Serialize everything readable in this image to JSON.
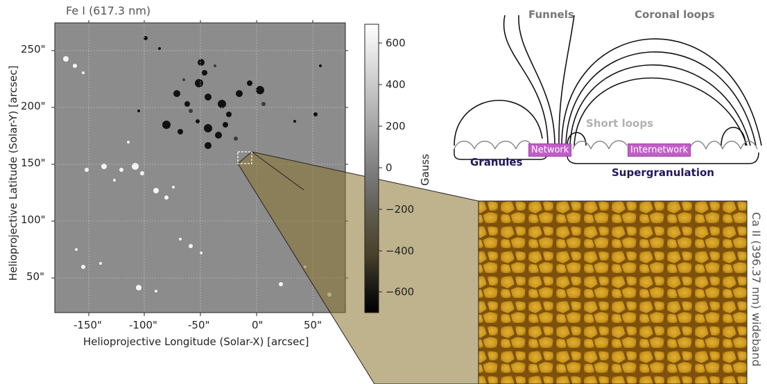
{
  "magnetogram": {
    "title": "Fe I (617.3 nm)",
    "xlabel": "Helioprojective Longitude (Solar-X) [arcsec]",
    "ylabel": "Helioprojective Latitude (Solar-Y) [arcsec]",
    "xticks": [
      "-150\"",
      "-100\"",
      "-50\"",
      "0\"",
      "50\""
    ],
    "yticks": [
      "250\"",
      "200\"",
      "150\"",
      "100\"",
      "50\""
    ]
  },
  "colorbar": {
    "label": "Gauss",
    "ticks": [
      "600",
      "400",
      "200",
      "0",
      "−200",
      "−400",
      "−600"
    ],
    "range": [
      -700,
      700
    ]
  },
  "diagram": {
    "funnels": "Funnels",
    "coronal_loops": "Coronal loops",
    "short_loops": "Short loops",
    "network": "Network",
    "internetwork": "Internetwork",
    "granules": "Granules",
    "supergranulation": "Supergranulation"
  },
  "inset": {
    "label": "Ca II (396.37 nm) wideband"
  },
  "colors": {
    "dark_label": "#23165e",
    "network_box": "#c25ec8",
    "inset_gold": "#c8951a"
  }
}
